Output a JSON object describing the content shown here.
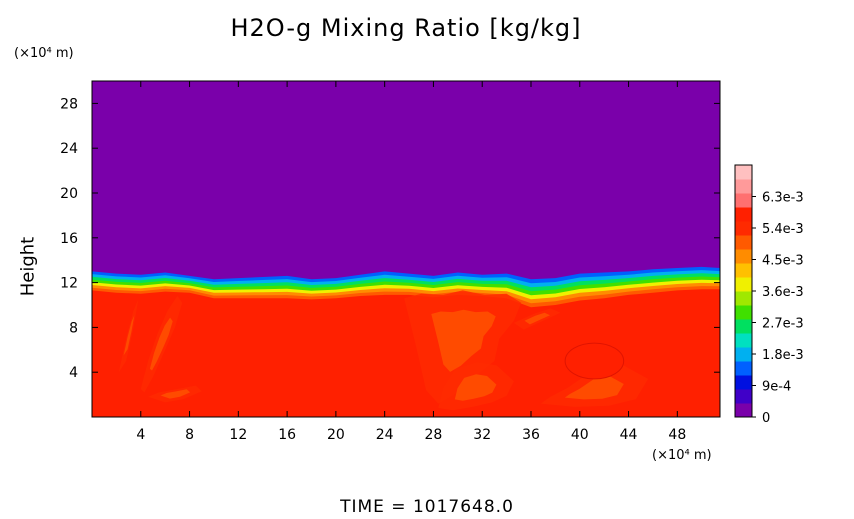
{
  "figure": {
    "title": "H2O-g Mixing Ratio [kg/kg]",
    "y_unit": "(×10⁴ m)",
    "x_unit": "(×10⁴ m)",
    "time_label": "TIME  =  1017648.0"
  },
  "chart_data": {
    "type": "heatmap",
    "title": "H2O-g Mixing Ratio [kg/kg]",
    "xlabel": "",
    "ylabel": "Height",
    "xlim": [
      0,
      51.5
    ],
    "ylim": [
      0,
      30
    ],
    "x_ticks": [
      4,
      8,
      12,
      16,
      20,
      24,
      28,
      32,
      36,
      40,
      44,
      48
    ],
    "y_ticks": [
      4,
      8,
      12,
      16,
      20,
      24,
      28
    ],
    "colorbar": {
      "range": [
        0,
        0.0072
      ],
      "tick_labels": [
        "0",
        "9e-4",
        "1.8e-3",
        "2.7e-3",
        "3.6e-3",
        "4.5e-3",
        "5.4e-3",
        "6.3e-3"
      ],
      "tick_values": [
        0,
        0.0009,
        0.0018,
        0.0027,
        0.0036,
        0.0045,
        0.0054,
        0.0063
      ],
      "colors": [
        "#7a00aa",
        "#4000c8",
        "#0010e0",
        "#0060ff",
        "#00b0f0",
        "#00e0c0",
        "#00e060",
        "#40e000",
        "#a0e800",
        "#f0f000",
        "#ffc000",
        "#ff8c00",
        "#ff5a00",
        "#ff2a00",
        "#ff2000",
        "#ff7070",
        "#ff9a9a",
        "#ffc0c0"
      ]
    },
    "field": {
      "upper_value": 0,
      "lower_value": 0.0058,
      "interface_height_profile": {
        "x": [
          0,
          2,
          4,
          6,
          8,
          10,
          12,
          14,
          16,
          18,
          20,
          22,
          24,
          26,
          28,
          30,
          32,
          34,
          36,
          38,
          40,
          42,
          44,
          46,
          48,
          50,
          51.5
        ],
        "y": [
          11.3,
          11.1,
          11.0,
          11.2,
          11.1,
          10.6,
          10.6,
          10.6,
          10.6,
          10.5,
          10.6,
          10.8,
          10.9,
          10.9,
          10.7,
          10.9,
          10.8,
          10.6,
          9.8,
          10.0,
          10.4,
          10.6,
          10.9,
          11.1,
          11.3,
          11.4,
          11.4
        ]
      },
      "moist_top_profile": {
        "x": [
          0,
          2,
          4,
          6,
          8,
          10,
          12,
          14,
          16,
          18,
          20,
          22,
          24,
          26,
          28,
          30,
          32,
          34,
          36,
          38,
          40,
          42,
          44,
          46,
          48,
          50,
          51.5
        ],
        "y": [
          13.0,
          12.8,
          12.7,
          12.9,
          12.6,
          12.3,
          12.4,
          12.5,
          12.6,
          12.3,
          12.4,
          12.7,
          13.0,
          12.8,
          12.6,
          12.9,
          12.7,
          12.8,
          12.3,
          12.4,
          12.8,
          12.9,
          13.0,
          13.2,
          13.3,
          13.4,
          13.3
        ]
      },
      "plumes": [
        {
          "x": [
            4.0,
            4.6,
            5.4,
            6.2,
            7.0,
            7.4,
            6.8,
            6.0,
            5.0,
            4.3
          ],
          "y": [
            2.5,
            5.0,
            7.5,
            9.5,
            10.8,
            10.2,
            8.0,
            6.0,
            3.6,
            2.2
          ]
        },
        {
          "x": [
            2.2,
            2.8,
            3.4,
            3.8,
            3.4,
            2.8
          ],
          "y": [
            4.0,
            7.0,
            9.5,
            10.5,
            8.0,
            5.0
          ]
        },
        {
          "x": [
            4.6,
            6.0,
            7.5,
            9.0,
            8.5,
            7.0,
            5.5
          ],
          "y": [
            1.8,
            1.3,
            1.6,
            2.3,
            2.8,
            2.5,
            2.2
          ]
        },
        {
          "x": [
            25.6,
            27.0,
            28.8,
            30.4,
            32.2,
            34.0,
            35.2,
            34.6,
            33.4,
            33.0,
            31.6,
            30.0,
            28.4,
            27.4,
            26.6
          ],
          "y": [
            10.6,
            11.0,
            10.9,
            11.3,
            10.9,
            11.0,
            10.2,
            8.6,
            7.0,
            5.0,
            3.8,
            2.2,
            1.2,
            2.4,
            6.2
          ]
        },
        {
          "x": [
            28.4,
            29.6,
            31.2,
            32.8,
            34.0,
            34.6,
            33.2,
            31.6,
            29.8,
            28.8
          ],
          "y": [
            0.8,
            0.6,
            0.9,
            1.3,
            1.9,
            3.2,
            4.6,
            4.9,
            4.3,
            2.6
          ]
        },
        {
          "x": [
            36.8,
            39.6,
            42.4,
            44.6,
            45.6,
            43.6,
            41.4,
            39.0,
            37.6
          ],
          "y": [
            1.2,
            0.9,
            1.0,
            1.6,
            3.4,
            4.6,
            4.4,
            2.6,
            1.8
          ]
        },
        {
          "x": [
            34.6,
            36.2,
            37.6,
            38.4,
            37.0,
            35.4
          ],
          "y": [
            8.4,
            9.2,
            9.7,
            9.3,
            8.6,
            7.8
          ]
        }
      ],
      "plume_value": 0.0052,
      "plume_core_value": 0.0048,
      "dry_blob": {
        "cx": 41.2,
        "cy": 5.0,
        "rx": 2.4,
        "ry": 1.6,
        "value": 0.0059
      }
    }
  }
}
